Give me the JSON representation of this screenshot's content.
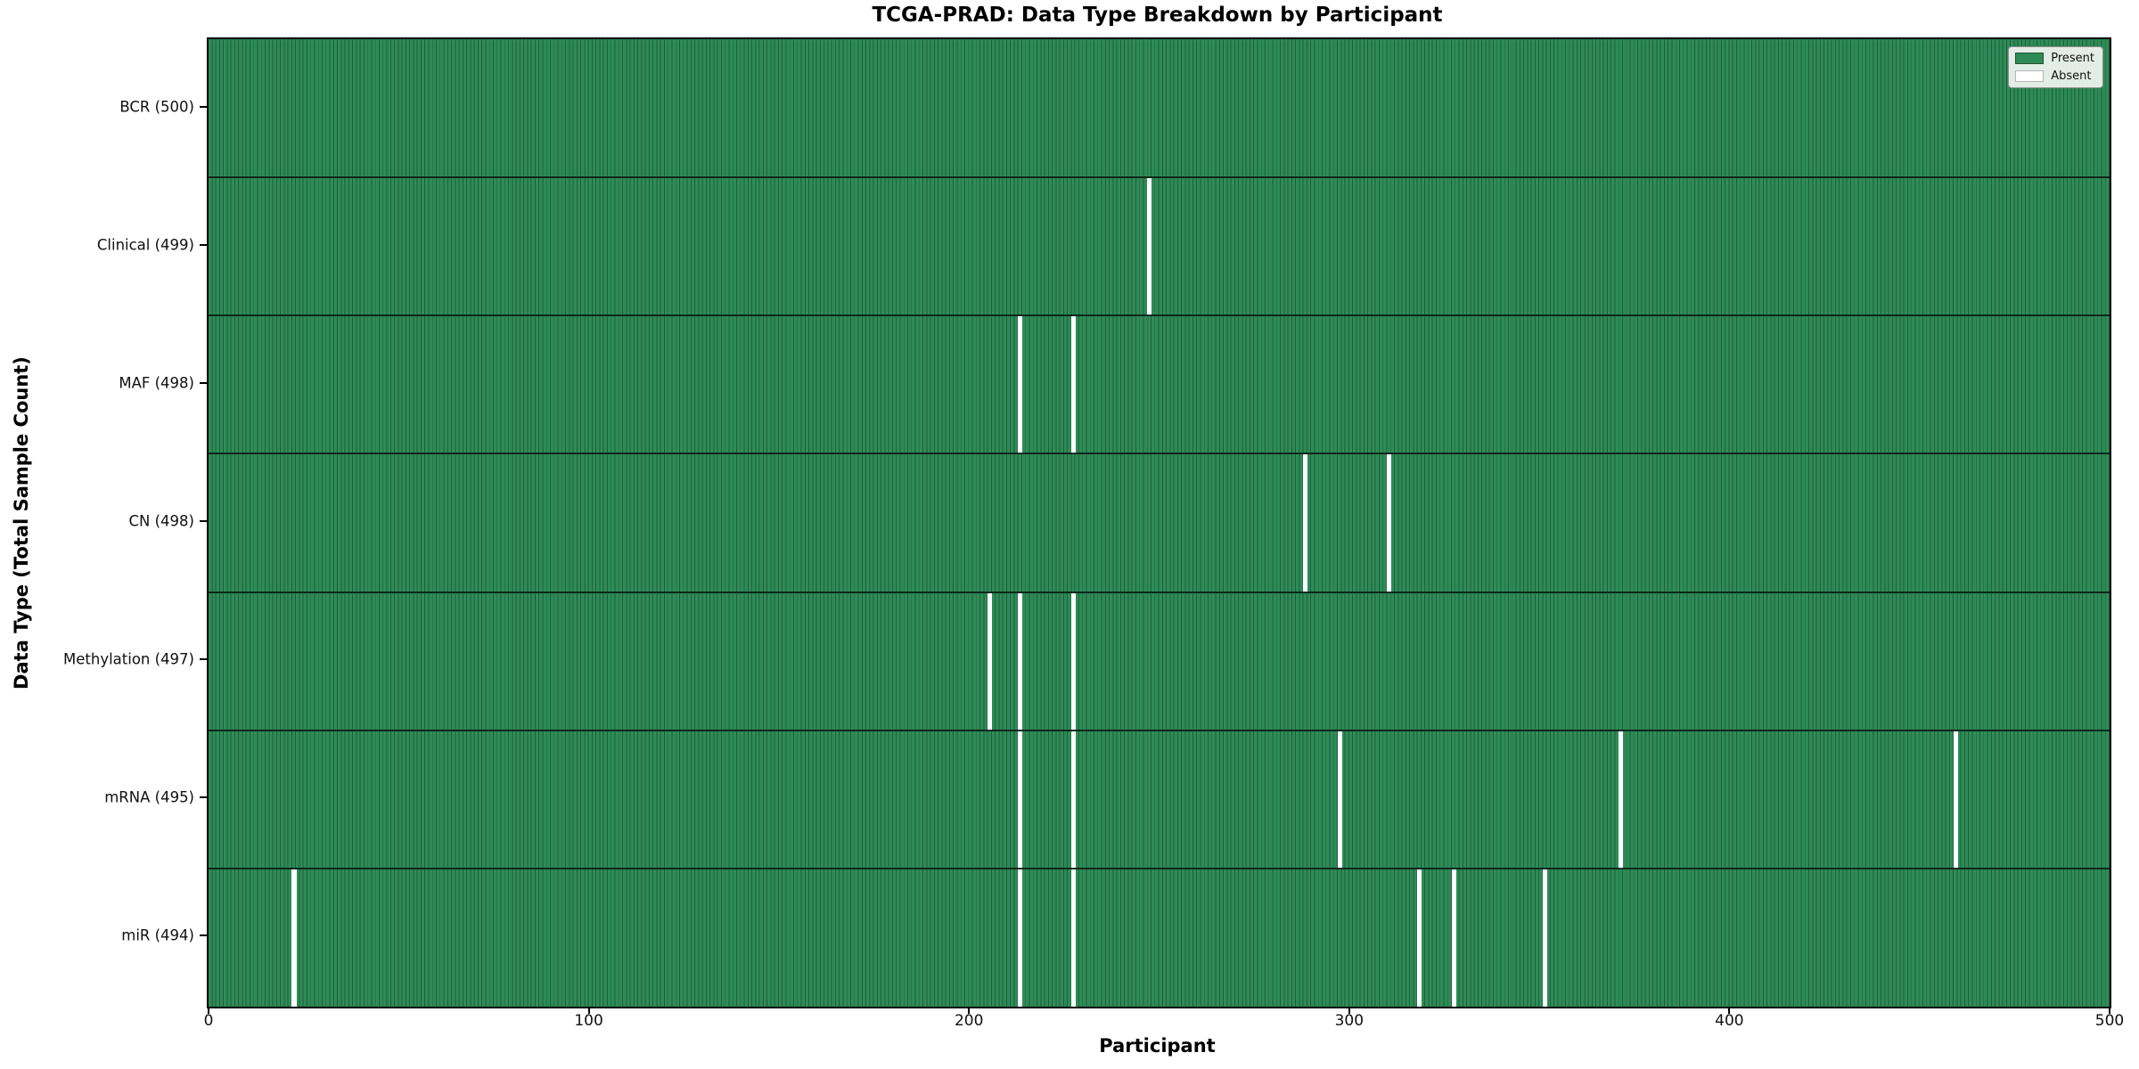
{
  "chart_data": {
    "type": "heatmap",
    "title": "TCGA-PRAD: Data Type Breakdown by Participant",
    "xlabel": "Participant",
    "ylabel": "Data Type (Total Sample Count)",
    "xlim": [
      0,
      500
    ],
    "x_ticks": [
      0,
      100,
      200,
      300,
      400,
      500
    ],
    "n_participants": 500,
    "grid": false,
    "legend_position": "upper right",
    "legend": [
      {
        "label": "Present",
        "color": "#2e8b57"
      },
      {
        "label": "Absent",
        "color": "#ffffff"
      }
    ],
    "rows": [
      {
        "label": "BCR (500)",
        "data_type": "BCR",
        "total": 500,
        "absent_participants": []
      },
      {
        "label": "Clinical (499)",
        "data_type": "Clinical",
        "total": 499,
        "absent_participants": [
          247
        ]
      },
      {
        "label": "MAF (498)",
        "data_type": "MAF",
        "total": 498,
        "absent_participants": [
          213,
          227
        ]
      },
      {
        "label": "CN (498)",
        "data_type": "CN",
        "total": 498,
        "absent_participants": [
          288,
          310
        ]
      },
      {
        "label": "Methylation (497)",
        "data_type": "Methylation",
        "total": 497,
        "absent_participants": [
          205,
          213,
          227
        ]
      },
      {
        "label": "mRNA (495)",
        "data_type": "mRNA",
        "total": 495,
        "absent_participants": [
          213,
          227,
          297,
          371,
          459
        ]
      },
      {
        "label": "miR (494)",
        "data_type": "miR",
        "total": 494,
        "absent_participants": [
          22,
          213,
          227,
          318,
          327,
          351
        ]
      }
    ],
    "colors": {
      "present": "#2e8b57",
      "cell_edge": "#205f3d",
      "absent": "#ffffff",
      "row_divider": "#0a1910",
      "axes_border": "#000000"
    }
  }
}
